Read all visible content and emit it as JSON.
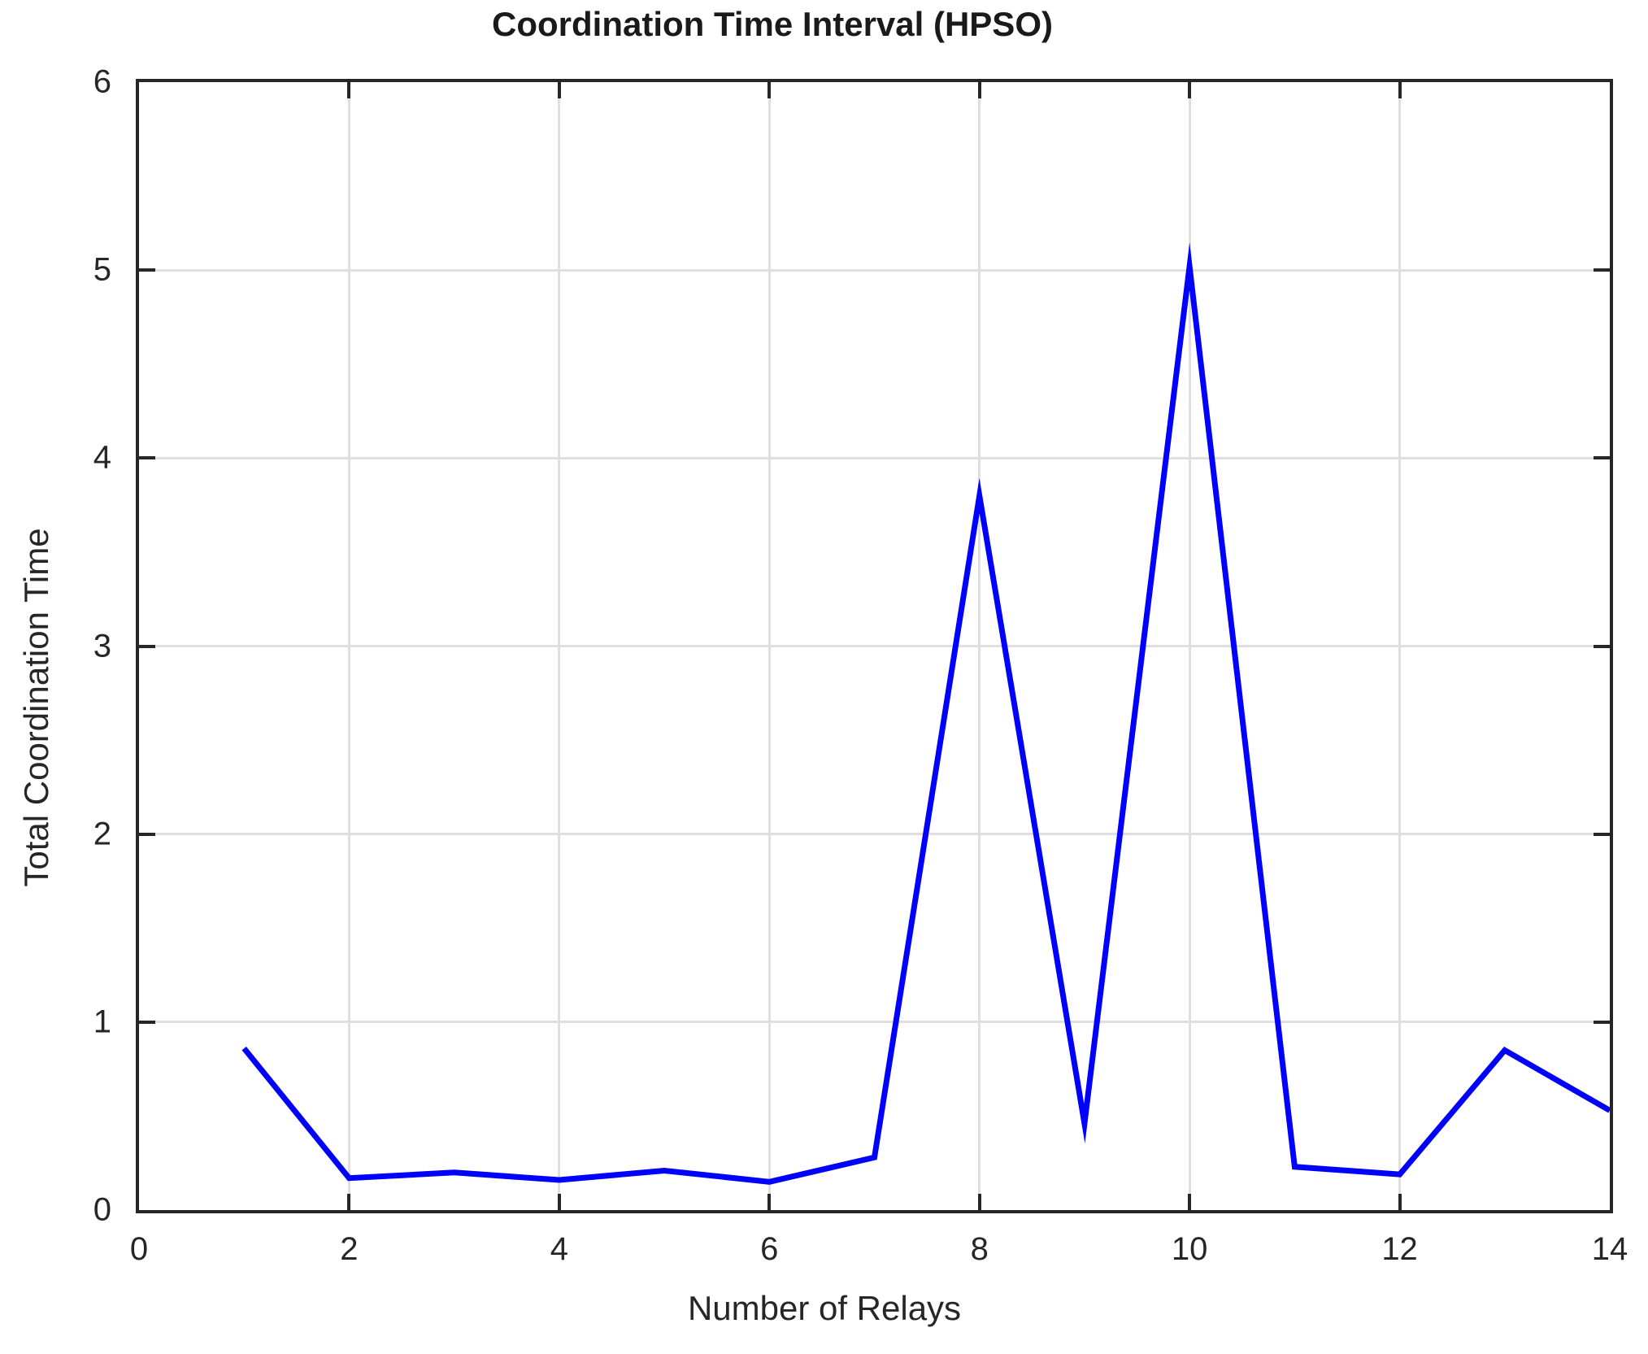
{
  "chart_data": {
    "type": "line",
    "title": "Coordination Time Interval (HPSO)",
    "xlabel": "Number of Relays",
    "ylabel": "Total Coordination Time",
    "x": [
      1,
      2,
      3,
      4,
      5,
      6,
      7,
      8,
      9,
      10,
      11,
      12,
      13,
      14
    ],
    "values": [
      0.86,
      0.17,
      0.2,
      0.16,
      0.21,
      0.15,
      0.28,
      3.8,
      0.46,
      5.02,
      0.23,
      0.19,
      0.85,
      0.53
    ],
    "xlim": [
      0,
      14
    ],
    "ylim": [
      0,
      6
    ],
    "xticks": [
      0,
      2,
      4,
      6,
      8,
      10,
      12,
      14
    ],
    "yticks": [
      0,
      1,
      2,
      3,
      4,
      5,
      6
    ],
    "grid": true,
    "legend": "none",
    "line_color": "#0000ff",
    "axis_color": "#262626",
    "grid_color": "#dfdfdf"
  }
}
